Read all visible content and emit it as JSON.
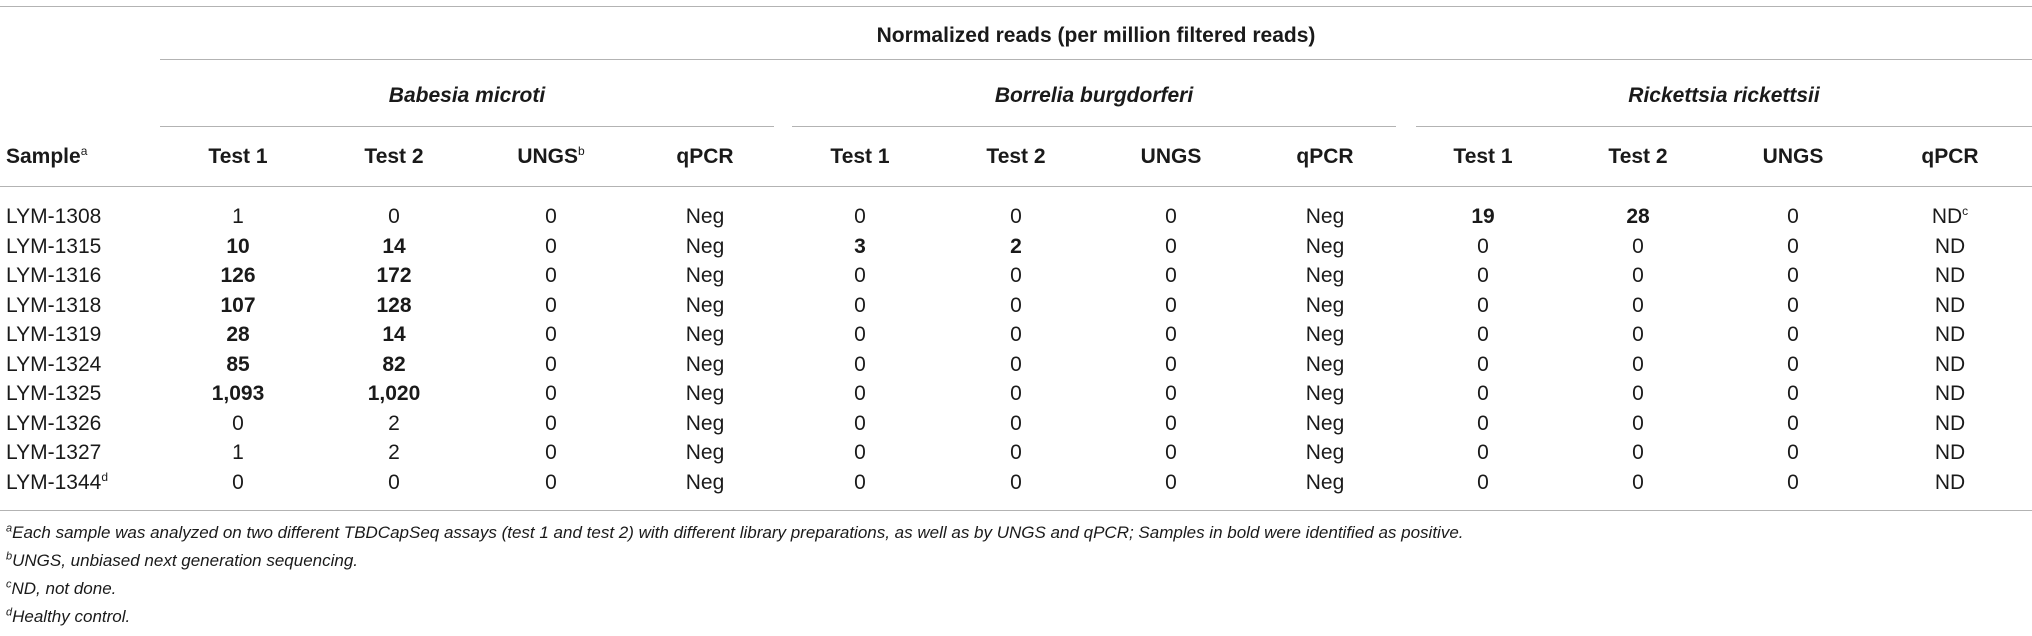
{
  "header": {
    "super_title": "Normalized reads (per million filtered reads)",
    "groups": [
      "Babesia microti",
      "Borrelia burgdorferi",
      "Rickettsia rickettsii"
    ],
    "sample_label": "Sample",
    "sample_sup": "a",
    "columns": [
      "Test 1",
      "Test 2",
      "UNGS",
      "qPCR",
      "Test 1",
      "Test 2",
      "UNGS",
      "qPCR",
      "Test 1",
      "Test 2",
      "UNGS",
      "qPCR"
    ],
    "column_sups": [
      "",
      "",
      "b",
      "",
      "",
      "",
      "",
      "",
      "",
      "",
      "",
      ""
    ]
  },
  "rows": [
    {
      "sample": "LYM-1308",
      "sample_sup": "",
      "values": [
        "1",
        "0",
        "0",
        "Neg",
        "0",
        "0",
        "0",
        "Neg",
        "19",
        "28",
        "0",
        "ND"
      ],
      "sups": [
        "",
        "",
        "",
        "",
        "",
        "",
        "",
        "",
        "",
        "",
        "",
        "c"
      ],
      "bold": [
        false,
        false,
        false,
        false,
        false,
        false,
        false,
        false,
        true,
        true,
        false,
        false
      ]
    },
    {
      "sample": "LYM-1315",
      "sample_sup": "",
      "values": [
        "10",
        "14",
        "0",
        "Neg",
        "3",
        "2",
        "0",
        "Neg",
        "0",
        "0",
        "0",
        "ND"
      ],
      "sups": [
        "",
        "",
        "",
        "",
        "",
        "",
        "",
        "",
        "",
        "",
        "",
        ""
      ],
      "bold": [
        true,
        true,
        false,
        false,
        true,
        true,
        false,
        false,
        false,
        false,
        false,
        false
      ]
    },
    {
      "sample": "LYM-1316",
      "sample_sup": "",
      "values": [
        "126",
        "172",
        "0",
        "Neg",
        "0",
        "0",
        "0",
        "Neg",
        "0",
        "0",
        "0",
        "ND"
      ],
      "sups": [
        "",
        "",
        "",
        "",
        "",
        "",
        "",
        "",
        "",
        "",
        "",
        ""
      ],
      "bold": [
        true,
        true,
        false,
        false,
        false,
        false,
        false,
        false,
        false,
        false,
        false,
        false
      ]
    },
    {
      "sample": "LYM-1318",
      "sample_sup": "",
      "values": [
        "107",
        "128",
        "0",
        "Neg",
        "0",
        "0",
        "0",
        "Neg",
        "0",
        "0",
        "0",
        "ND"
      ],
      "sups": [
        "",
        "",
        "",
        "",
        "",
        "",
        "",
        "",
        "",
        "",
        "",
        ""
      ],
      "bold": [
        true,
        true,
        false,
        false,
        false,
        false,
        false,
        false,
        false,
        false,
        false,
        false
      ]
    },
    {
      "sample": "LYM-1319",
      "sample_sup": "",
      "values": [
        "28",
        "14",
        "0",
        "Neg",
        "0",
        "0",
        "0",
        "Neg",
        "0",
        "0",
        "0",
        "ND"
      ],
      "sups": [
        "",
        "",
        "",
        "",
        "",
        "",
        "",
        "",
        "",
        "",
        "",
        ""
      ],
      "bold": [
        true,
        true,
        false,
        false,
        false,
        false,
        false,
        false,
        false,
        false,
        false,
        false
      ]
    },
    {
      "sample": "LYM-1324",
      "sample_sup": "",
      "values": [
        "85",
        "82",
        "0",
        "Neg",
        "0",
        "0",
        "0",
        "Neg",
        "0",
        "0",
        "0",
        "ND"
      ],
      "sups": [
        "",
        "",
        "",
        "",
        "",
        "",
        "",
        "",
        "",
        "",
        "",
        ""
      ],
      "bold": [
        true,
        true,
        false,
        false,
        false,
        false,
        false,
        false,
        false,
        false,
        false,
        false
      ]
    },
    {
      "sample": "LYM-1325",
      "sample_sup": "",
      "values": [
        "1,093",
        "1,020",
        "0",
        "Neg",
        "0",
        "0",
        "0",
        "Neg",
        "0",
        "0",
        "0",
        "ND"
      ],
      "sups": [
        "",
        "",
        "",
        "",
        "",
        "",
        "",
        "",
        "",
        "",
        "",
        ""
      ],
      "bold": [
        true,
        true,
        false,
        false,
        false,
        false,
        false,
        false,
        false,
        false,
        false,
        false
      ]
    },
    {
      "sample": "LYM-1326",
      "sample_sup": "",
      "values": [
        "0",
        "2",
        "0",
        "Neg",
        "0",
        "0",
        "0",
        "Neg",
        "0",
        "0",
        "0",
        "ND"
      ],
      "sups": [
        "",
        "",
        "",
        "",
        "",
        "",
        "",
        "",
        "",
        "",
        "",
        ""
      ],
      "bold": [
        false,
        false,
        false,
        false,
        false,
        false,
        false,
        false,
        false,
        false,
        false,
        false
      ]
    },
    {
      "sample": "LYM-1327",
      "sample_sup": "",
      "values": [
        "1",
        "2",
        "0",
        "Neg",
        "0",
        "0",
        "0",
        "Neg",
        "0",
        "0",
        "0",
        "ND"
      ],
      "sups": [
        "",
        "",
        "",
        "",
        "",
        "",
        "",
        "",
        "",
        "",
        "",
        ""
      ],
      "bold": [
        false,
        false,
        false,
        false,
        false,
        false,
        false,
        false,
        false,
        false,
        false,
        false
      ]
    },
    {
      "sample": "LYM-1344",
      "sample_sup": "d",
      "values": [
        "0",
        "0",
        "0",
        "Neg",
        "0",
        "0",
        "0",
        "Neg",
        "0",
        "0",
        "0",
        "ND"
      ],
      "sups": [
        "",
        "",
        "",
        "",
        "",
        "",
        "",
        "",
        "",
        "",
        "",
        ""
      ],
      "bold": [
        false,
        false,
        false,
        false,
        false,
        false,
        false,
        false,
        false,
        false,
        false,
        false
      ]
    }
  ],
  "footnotes": [
    {
      "mark": "a",
      "text": "Each sample was analyzed on two different TBDCapSeq assays (test 1 and test 2) with different library preparations, as well as by UNGS and qPCR; Samples in bold were identified as positive."
    },
    {
      "mark": "b",
      "text": "UNGS, unbiased next generation sequencing."
    },
    {
      "mark": "c",
      "text": "ND, not done."
    },
    {
      "mark": "d",
      "text": "Healthy control."
    }
  ]
}
